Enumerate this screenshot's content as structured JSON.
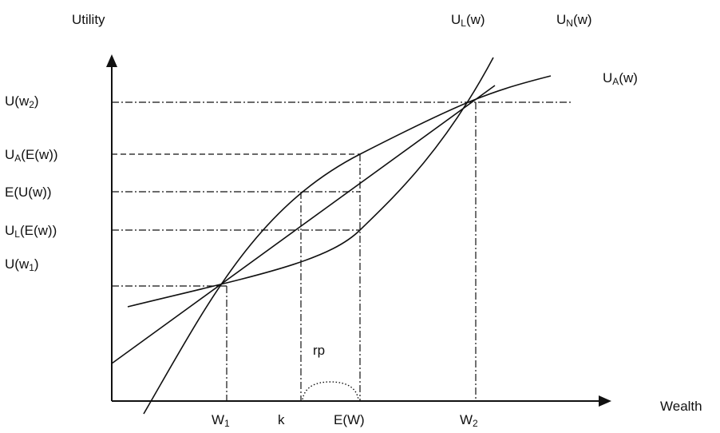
{
  "axes": {
    "y_label": "Utility",
    "x_label": "Wealth"
  },
  "curves": {
    "ul": {
      "main": "U",
      "sub": "L",
      "tail": "(w)"
    },
    "un": {
      "main": "U",
      "sub": "N",
      "tail": "(w)"
    },
    "ua": {
      "main": "U",
      "sub": "A",
      "tail": "(w)"
    }
  },
  "y_ticks": {
    "u_w2": {
      "main": "U(w",
      "sub": "2",
      "tail": ")"
    },
    "ua_ew": {
      "main": "U",
      "sub": "A",
      "tail": "(E(w))"
    },
    "e_uw": {
      "main": "E(U(w))",
      "sub": "",
      "tail": ""
    },
    "ul_ew": {
      "main": "U",
      "sub": "L",
      "tail": "(E(w))"
    },
    "u_w1": {
      "main": "U(w",
      "sub": "1",
      "tail": ")"
    }
  },
  "x_ticks": {
    "w1": {
      "main": "W",
      "sub": "1",
      "tail": ""
    },
    "k": {
      "main": "k",
      "sub": "",
      "tail": ""
    },
    "ew": {
      "main": "E(W)",
      "sub": "",
      "tail": ""
    },
    "w2": {
      "main": "W",
      "sub": "2",
      "tail": ""
    }
  },
  "annotations": {
    "rp": "rp"
  }
}
